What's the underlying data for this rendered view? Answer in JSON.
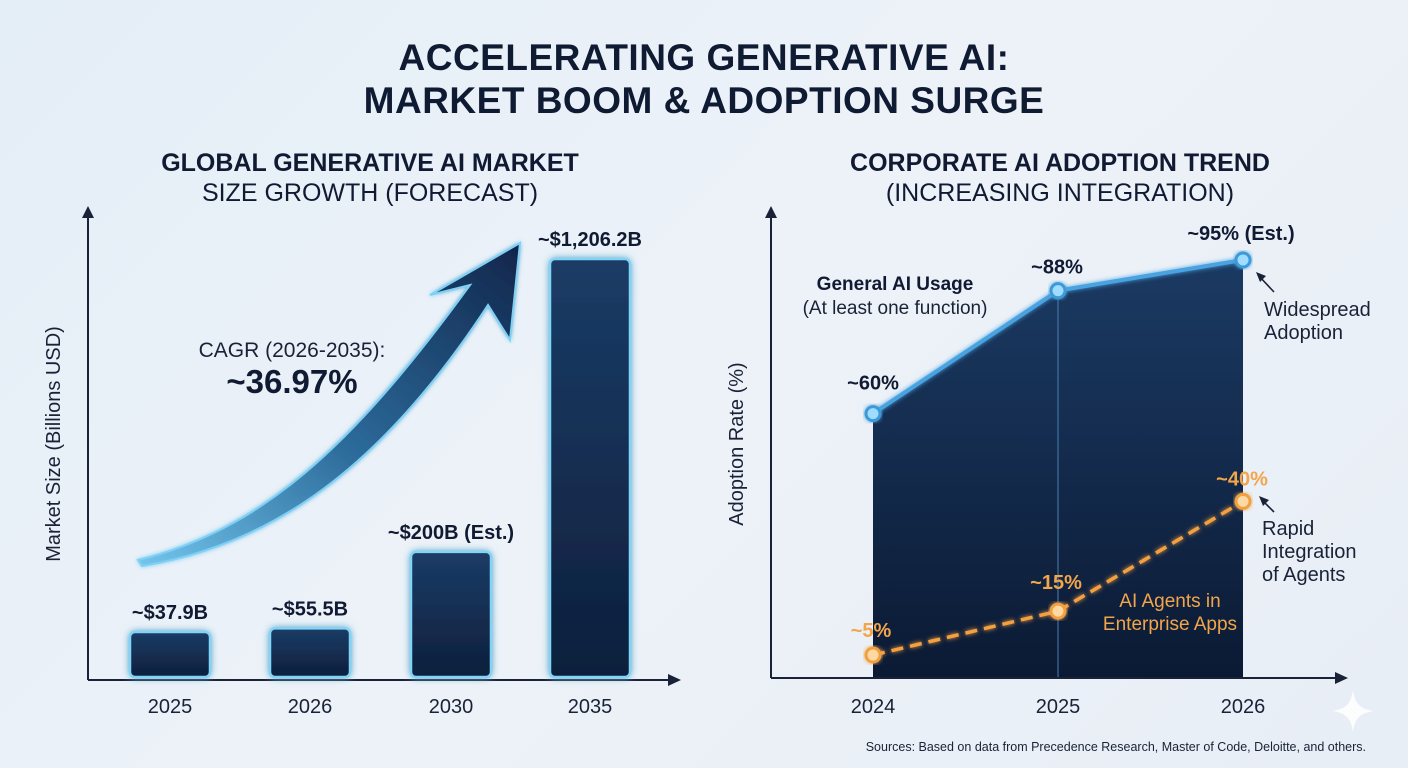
{
  "title_line1": "ACCELERATING GENERATIVE AI:",
  "title_line2": "MARKET BOOM & ADOPTION SURGE",
  "source_note": "Sources: Based on data from Precedence Research, Master of Code, Deloitte, and others.",
  "chart_data": [
    {
      "type": "bar",
      "title": "GLOBAL GENERATIVE AI MARKET",
      "subtitle": "SIZE GROWTH (FORECAST)",
      "ylabel": "Market Size (Billions USD)",
      "xlabel": "",
      "categories": [
        "2025",
        "2026",
        "2030",
        "2035"
      ],
      "values": [
        37.9,
        55.5,
        200,
        1206.2
      ],
      "data_labels": [
        "~$37.9B",
        "~$55.5B",
        "~$200B (Est.)",
        "~$1,206.2B"
      ],
      "annotation": {
        "label": "CAGR (2026-2035):",
        "value": "~36.97%"
      }
    },
    {
      "type": "area",
      "title": "CORPORATE AI ADOPTION TREND",
      "subtitle": "(INCREASING INTEGRATION)",
      "ylabel": "Adoption Rate (%)",
      "xlabel": "",
      "categories": [
        "2024",
        "2025",
        "2026"
      ],
      "ylim": [
        0,
        100
      ],
      "series": [
        {
          "name": "General AI Usage",
          "name_sub": "(At least one function)",
          "values": [
            60,
            88,
            95
          ],
          "data_labels": [
            "~60%",
            "~88%",
            "~95% (Est.)"
          ],
          "color": "#4aa3e0",
          "annotation_line1": "Widespread",
          "annotation_line2": "Adoption"
        },
        {
          "name": "AI Agents in",
          "name_line2": "Enterprise Apps",
          "values": [
            5,
            15,
            40
          ],
          "data_labels": [
            "~5%",
            "~15%",
            "~40%"
          ],
          "color": "#f5a040",
          "annotation_line1": "Rapid",
          "annotation_line2": "Integration",
          "annotation_line3": "of Agents"
        }
      ]
    }
  ]
}
